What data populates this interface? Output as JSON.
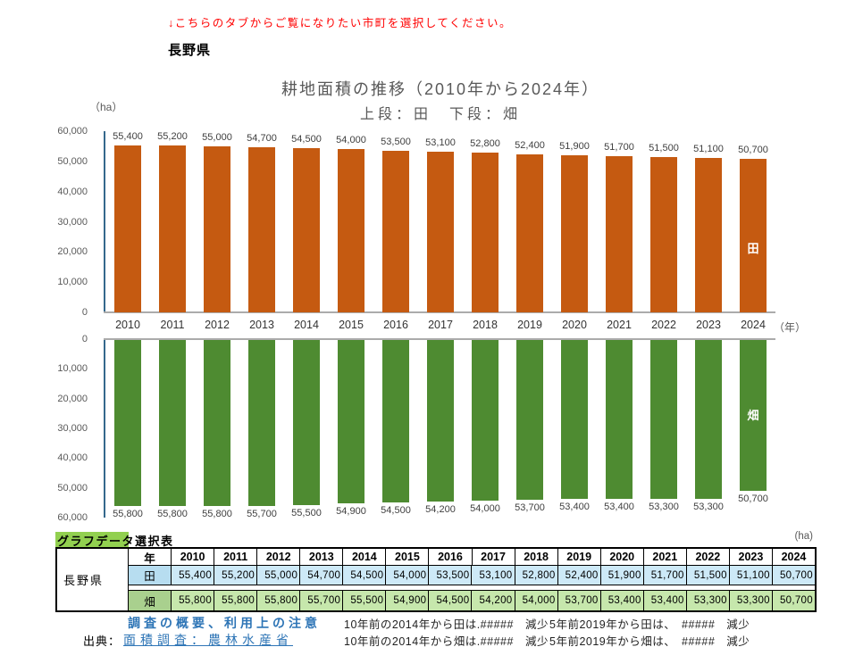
{
  "page": {
    "top_note": "↓こちらのタブからご覧になりたい市町を選択してください。",
    "prefecture": "長野県"
  },
  "chart": {
    "unit_label": "（ha）",
    "year_unit_label": "（年）",
    "colors": {
      "paddy": "#C55A11",
      "field": "#4E8B31",
      "axis_line": "#35688C",
      "baseline": "#ABABAB",
      "text_gray": "#595959",
      "note_red": "#FF0000",
      "link_blue": "#2E75B6",
      "caption_green": "#92D050"
    }
  },
  "chart_data": {
    "type": "bar",
    "title": "耕地面積の推移（2010年から2024年）",
    "subtitle": "上段：田　下段：畑",
    "unit": "ha",
    "categories": [
      2010,
      2011,
      2012,
      2013,
      2014,
      2015,
      2016,
      2017,
      2018,
      2019,
      2020,
      2021,
      2022,
      2023,
      2024
    ],
    "series": [
      {
        "name": "田",
        "color": "#C55A11",
        "position": "upper chart, bars grow up from 0",
        "values": [
          55400,
          55200,
          55000,
          54700,
          54500,
          54000,
          53500,
          53100,
          52800,
          52400,
          51900,
          51700,
          51500,
          51100,
          50700
        ]
      },
      {
        "name": "畑",
        "color": "#4E8B31",
        "position": "lower chart, inverted axis, bars hang down from 0",
        "values": [
          55800,
          55800,
          55800,
          55700,
          55500,
          54900,
          54500,
          54200,
          54000,
          53700,
          53400,
          53400,
          53300,
          53300,
          50700
        ]
      }
    ],
    "ylim": [
      0,
      60000
    ],
    "yticks": [
      0,
      10000,
      20000,
      30000,
      40000,
      50000,
      60000
    ],
    "grid": false,
    "value_labels": true,
    "legend": "series name printed in white inside last (2024) bar"
  },
  "table": {
    "caption": "グラフデータ選択表",
    "unit_label": "(ha)",
    "region_label": "長野県",
    "year_header": "年",
    "years": [
      "2010",
      "2011",
      "2012",
      "2013",
      "2014",
      "2015",
      "2016",
      "2017",
      "2018",
      "2019",
      "2020",
      "2021",
      "2022",
      "2023",
      "2024"
    ],
    "rows": [
      {
        "label": "田",
        "label_bg": "#B7DDF0",
        "bg": "#CDE9F7",
        "values": [
          "55,400",
          "55,200",
          "55,000",
          "54,700",
          "54,500",
          "54,000",
          "53,500",
          "53,100",
          "52,800",
          "52,400",
          "51,900",
          "51,700",
          "51,500",
          "51,100",
          "50,700"
        ]
      },
      {
        "label": "畑",
        "label_bg": "#A9D08E",
        "bg": "#C6E7AC",
        "values": [
          "55,800",
          "55,800",
          "55,800",
          "55,700",
          "55,500",
          "54,900",
          "54,500",
          "54,200",
          "54,000",
          "53,700",
          "53,400",
          "53,400",
          "53,300",
          "53,300",
          "50,700"
        ]
      }
    ]
  },
  "footer": {
    "survey_link": "調査の概要、利用上の注意",
    "source_label": "出典：",
    "source_link": "面積調査：農林水産省",
    "notes": {
      "paddy_10yr": "10年前の2014年から田は.#####　減少",
      "paddy_5yr": "5年前2019年から田は、　#####　減少",
      "field_10yr": "10年前の2014年から畑は.#####　減少",
      "field_5yr": "5年前2019年から畑は、　#####　減少"
    }
  }
}
